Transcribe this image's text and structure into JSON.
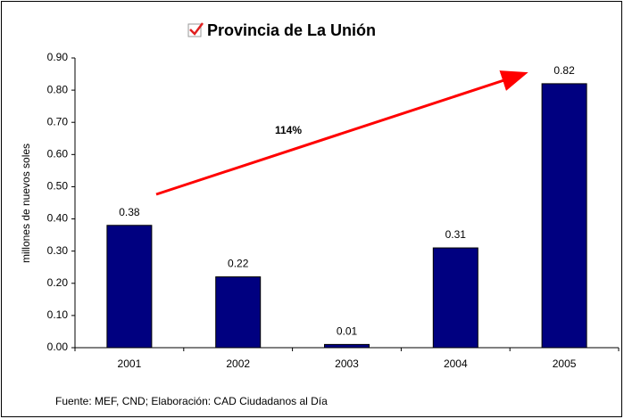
{
  "chart_data": {
    "type": "bar",
    "title": "Provincia de La Unión",
    "y_label": "millones de nuevos soles",
    "categories": [
      "2001",
      "2002",
      "2003",
      "2004",
      "2005"
    ],
    "values": [
      0.38,
      0.22,
      0.01,
      0.31,
      0.82
    ],
    "color": "#000080",
    "ylim": [
      0,
      0.9
    ],
    "yticks": [
      {
        "value": 0,
        "label": "0.00"
      },
      {
        "value": 0.1,
        "label": "0.10"
      },
      {
        "value": 0.2,
        "label": "0.20"
      },
      {
        "value": 0.3,
        "label": "0.30"
      },
      {
        "value": 0.4,
        "label": "0.40"
      },
      {
        "value": 0.5,
        "label": "0.50"
      },
      {
        "value": 0.6,
        "label": "0.60"
      },
      {
        "value": 0.7,
        "label": "0.70"
      },
      {
        "value": 0.8,
        "label": "0.80"
      },
      {
        "value": 0.9,
        "label": "0.90"
      }
    ],
    "annotation": "114%",
    "source": "Fuente: MEF, CND; Elaboración: CAD Ciudadanos al Día"
  }
}
